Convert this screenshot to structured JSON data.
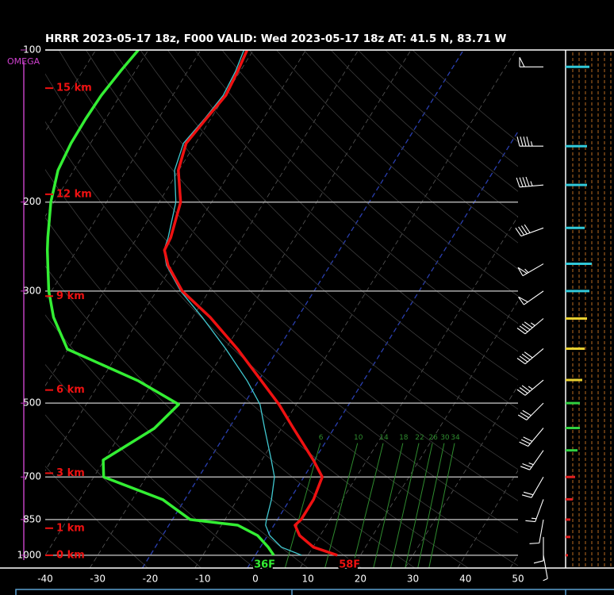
{
  "chart_data": {
    "type": "skewt",
    "title": "HRRR 2023-05-17 18z, F000  VALID: Wed 2023-05-17 18z  AT: 41.5 N, 83.71 W",
    "omega_label": "OMEGA",
    "log_y": true,
    "xlim": [
      -40,
      50
    ],
    "xticks": [
      -40,
      -30,
      -20,
      -10,
      0,
      10,
      20,
      30,
      40,
      50
    ],
    "ylim": [
      1060,
      100
    ],
    "yticks": [
      100,
      200,
      300,
      500,
      700,
      850,
      1000
    ],
    "pressure": [
      1000,
      964,
      914,
      872,
      850,
      776,
      700,
      648,
      561,
      503,
      452,
      391,
      338,
      300,
      267,
      249,
      235,
      200,
      173,
      153,
      137,
      123,
      110,
      100
    ],
    "series": [
      {
        "color": "#ee1111",
        "label": "58F",
        "values": [
          15.6,
          10.1,
          6.1,
          4.0,
          4.5,
          4.5,
          3.5,
          -0.2,
          -7.7,
          -13.3,
          -19.4,
          -27.7,
          -36.7,
          -45.1,
          -50.8,
          -53.3,
          -53.6,
          -55.9,
          -60.1,
          -61.8,
          -60.9,
          -59.9,
          -60.5,
          -61.2
        ]
      },
      {
        "color": "#33ee33",
        "label": "36F",
        "values": [
          3.5,
          1.5,
          -1.9,
          -6.9,
          -16.6,
          -24.2,
          -38.1,
          -40.2,
          -34.2,
          -32.4,
          -42.8,
          -60.1,
          -66.5,
          -70.5,
          -73.7,
          -75.6,
          -77.0,
          -80.6,
          -83.0,
          -83.7,
          -83.8,
          -83.6,
          -82.8,
          -81.9
        ]
      },
      {
        "color": "#40c8d0",
        "values": [
          8.8,
          4.0,
          0.4,
          -1.6,
          -2.1,
          -3.5,
          -5.6,
          -8.2,
          -13.2,
          -16.9,
          -22.1,
          -29.9,
          -38.2,
          -45.4,
          -51.1,
          -53.4,
          -54.1,
          -56.8,
          -60.8,
          -62.3,
          -61.2,
          -60.4,
          -60.9,
          -61.8
        ]
      }
    ],
    "height_labels": [
      {
        "label": "15 km",
        "pressure": 119
      },
      {
        "label": "12 km",
        "pressure": 193
      },
      {
        "label": "9 km",
        "pressure": 307
      },
      {
        "label": "6 km",
        "pressure": 471
      },
      {
        "label": "3 km",
        "pressure": 688
      },
      {
        "label": "1 km",
        "pressure": 884
      },
      {
        "label": "0 km",
        "pressure": 1000
      }
    ],
    "mixing_ratio": {
      "color": "#2e8b2e",
      "values": [
        6,
        10,
        14,
        18,
        22,
        26,
        30,
        34
      ]
    },
    "wind": {
      "pressure": [
        108,
        155,
        185,
        225,
        265,
        300,
        340,
        390,
        450,
        500,
        560,
        620,
        700,
        775,
        850,
        920,
        1000
      ],
      "direction": [
        270,
        270,
        265,
        250,
        240,
        235,
        230,
        230,
        230,
        225,
        220,
        215,
        210,
        200,
        190,
        180,
        170
      ],
      "speed": [
        50,
        45,
        45,
        40,
        55,
        50,
        45,
        40,
        35,
        30,
        30,
        25,
        20,
        15,
        10,
        10,
        5
      ]
    }
  }
}
